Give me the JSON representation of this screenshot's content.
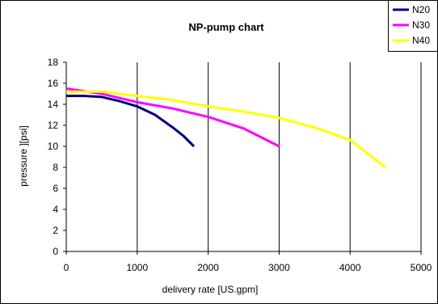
{
  "chart_data": {
    "type": "line",
    "title": "NP-pump chart",
    "xlabel": "delivery rate [US.gpm]",
    "ylabel": "pressure ][psi]",
    "xlim": [
      0,
      5000
    ],
    "ylim": [
      0,
      18
    ],
    "xticks": [
      "0",
      "1000",
      "2000",
      "3000",
      "4000",
      "5000"
    ],
    "yticks": [
      "0",
      "2",
      "4",
      "6",
      "8",
      "10",
      "12",
      "14",
      "16",
      "18"
    ],
    "grid": "vertical",
    "legend_position": "top-right",
    "series": [
      {
        "name": "N20",
        "color": "#000080",
        "points": [
          [
            0,
            14.8
          ],
          [
            250,
            14.8
          ],
          [
            500,
            14.7
          ],
          [
            750,
            14.3
          ],
          [
            1000,
            13.8
          ],
          [
            1250,
            13.0
          ],
          [
            1500,
            11.8
          ],
          [
            1650,
            11.0
          ],
          [
            1800,
            10.0
          ]
        ]
      },
      {
        "name": "N30",
        "color": "#ff00ff",
        "points": [
          [
            0,
            15.5
          ],
          [
            500,
            15.0
          ],
          [
            1000,
            14.2
          ],
          [
            1500,
            13.6
          ],
          [
            2000,
            12.8
          ],
          [
            2500,
            11.7
          ],
          [
            3000,
            10.0
          ]
        ]
      },
      {
        "name": "N40",
        "color": "#ffff00",
        "points": [
          [
            0,
            15.2
          ],
          [
            500,
            15.2
          ],
          [
            1000,
            14.8
          ],
          [
            1500,
            14.4
          ],
          [
            2000,
            13.8
          ],
          [
            2500,
            13.3
          ],
          [
            3000,
            12.7
          ],
          [
            3500,
            11.8
          ],
          [
            4000,
            10.6
          ],
          [
            4250,
            9.3
          ],
          [
            4500,
            8.0
          ]
        ]
      }
    ]
  }
}
